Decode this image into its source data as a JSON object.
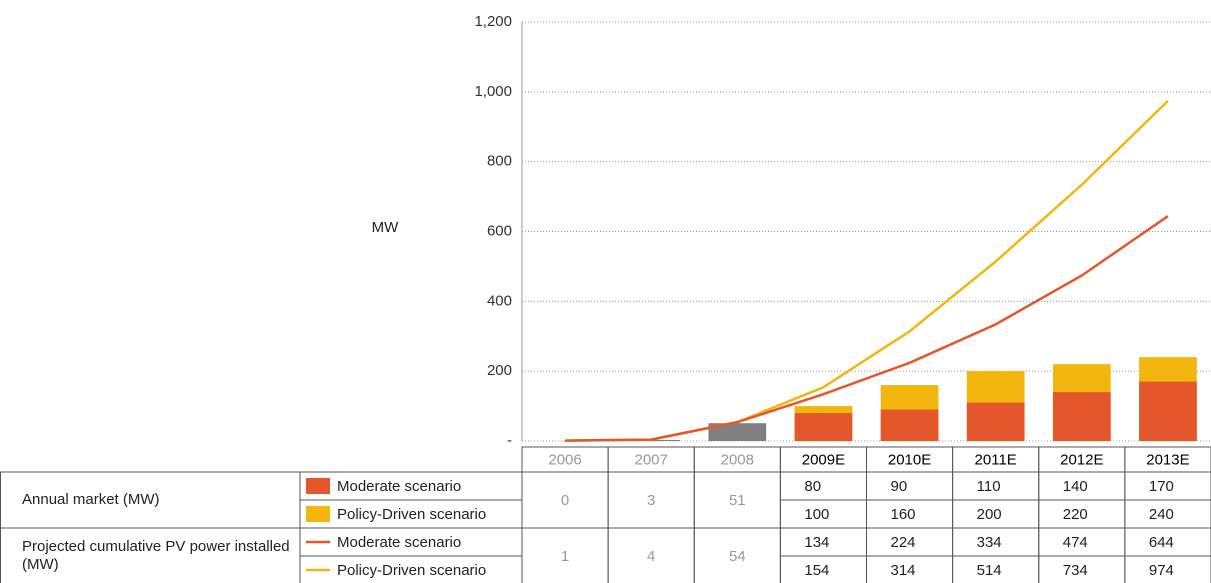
{
  "chart_data": {
    "type": "bar_line_table",
    "ylabel": "MW",
    "ylim": [
      0,
      1200
    ],
    "yticks": [
      {
        "value": 0,
        "label": "-"
      },
      200,
      400,
      600,
      800,
      {
        "value": 1000,
        "label": "1,000"
      },
      {
        "value": 1200,
        "label": "1,200"
      }
    ],
    "grid": true,
    "categories": [
      "2006",
      "2007",
      "2008",
      "2009E",
      "2010E",
      "2011E",
      "2012E",
      "2013E"
    ],
    "row_labels": [
      "Annual market (MW)",
      "Projected cumulative PV power installed (MW)"
    ],
    "actual": {
      "color": "#808080",
      "annual": [
        0,
        3,
        51
      ],
      "cumulative": [
        1,
        4,
        54
      ]
    },
    "series": [
      {
        "name": "Moderate scenario",
        "kind": "bar",
        "color": "#e4572a",
        "values": [
          null,
          null,
          null,
          80,
          90,
          110,
          140,
          170
        ]
      },
      {
        "name": "Policy-Driven scenario",
        "kind": "bar",
        "color": "#f2b60f",
        "values": [
          null,
          null,
          null,
          100,
          160,
          200,
          220,
          240
        ]
      },
      {
        "name": "Moderate scenario",
        "kind": "line",
        "color": "#e4572a",
        "values": [
          null,
          null,
          null,
          134,
          224,
          334,
          474,
          644
        ]
      },
      {
        "name": "Policy-Driven scenario",
        "kind": "line",
        "color": "#f2b60f",
        "values": [
          null,
          null,
          null,
          154,
          314,
          514,
          734,
          974
        ]
      }
    ]
  }
}
